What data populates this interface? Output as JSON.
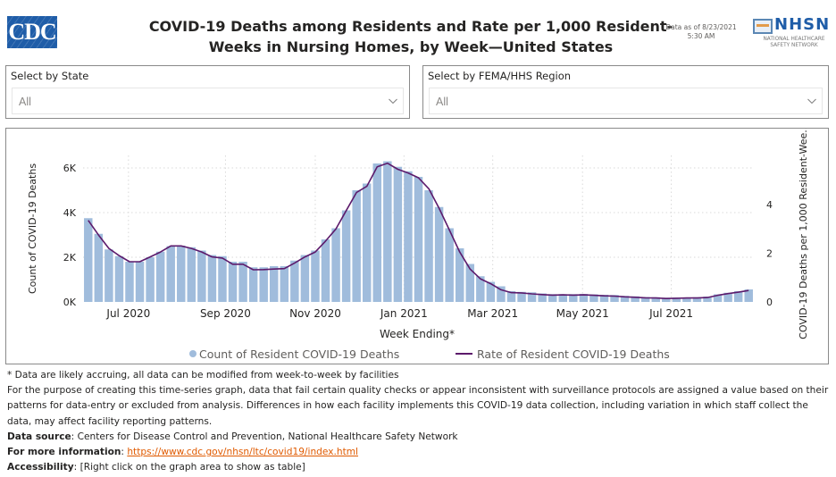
{
  "header": {
    "logo_text": "CDC",
    "title_line1": "COVID-19 Deaths among Residents and Rate per 1,000 Resident-",
    "title_line2": "Weeks in Nursing Homes, by Week—United States",
    "as_of_line1": "Data as of 8/23/2021",
    "as_of_line2": "5:30 AM",
    "nhsn_logo_text": "NHSN",
    "nhsn_sub_line1": "NATIONAL HEALTHCARE",
    "nhsn_sub_line2": "SAFETY NETWORK"
  },
  "filters": {
    "state": {
      "label": "Select by State",
      "value": "All"
    },
    "region": {
      "label": "Select by FEMA/HHS Region",
      "value": "All"
    }
  },
  "chart_data": {
    "type": "bar+line",
    "title": "",
    "xlabel": "Week Ending*",
    "ylabel": "Count of COVID-19 Deaths",
    "y2label": "COVID-19 Deaths per 1,000 Resident-Wee...",
    "ylim": [
      0,
      6500
    ],
    "y2lim": [
      0,
      5.9
    ],
    "yticks": [
      {
        "v": 0,
        "label": "0K"
      },
      {
        "v": 2000,
        "label": "2K"
      },
      {
        "v": 4000,
        "label": "4K"
      },
      {
        "v": 6000,
        "label": "6K"
      }
    ],
    "y2ticks": [
      {
        "v": 0,
        "label": "0"
      },
      {
        "v": 2,
        "label": "2"
      },
      {
        "v": 4,
        "label": "4"
      }
    ],
    "xticks": [
      {
        "index": 4.4,
        "label": "Jul 2020"
      },
      {
        "index": 13.8,
        "label": "Sep 2020"
      },
      {
        "index": 22.5,
        "label": "Nov 2020"
      },
      {
        "index": 31.1,
        "label": "Jan 2021"
      },
      {
        "index": 39.7,
        "label": "Mar 2021"
      },
      {
        "index": 48.4,
        "label": "May 2021"
      },
      {
        "index": 57.0,
        "label": "Jul 2021"
      }
    ],
    "grid": true,
    "legend_position": "bottom-center",
    "series": [
      {
        "name": "Count of Resident COVID-19 Deaths",
        "type": "bar",
        "color": "#a0bcdc",
        "values": [
          3750,
          3050,
          2350,
          2050,
          1800,
          1800,
          2000,
          2250,
          2500,
          2520,
          2450,
          2300,
          2100,
          2050,
          1800,
          1800,
          1550,
          1550,
          1600,
          1600,
          1850,
          2100,
          2300,
          2800,
          3300,
          4100,
          5000,
          5300,
          6200,
          6300,
          6050,
          5850,
          5600,
          5000,
          4250,
          3300,
          2400,
          1700,
          1150,
          900,
          700,
          480,
          450,
          430,
          380,
          350,
          350,
          350,
          360,
          340,
          320,
          310,
          270,
          250,
          220,
          210,
          190,
          200,
          200,
          210,
          240,
          340,
          410,
          480,
          560
        ]
      },
      {
        "name": "Rate of Resident COVID-19 Deaths",
        "type": "line",
        "color": "#5c1a6b",
        "values": [
          3.35,
          2.75,
          2.2,
          1.9,
          1.65,
          1.65,
          1.85,
          2.05,
          2.3,
          2.3,
          2.2,
          2.05,
          1.85,
          1.8,
          1.55,
          1.55,
          1.32,
          1.33,
          1.35,
          1.37,
          1.6,
          1.85,
          2.05,
          2.5,
          3.0,
          3.75,
          4.5,
          4.75,
          5.55,
          5.7,
          5.45,
          5.3,
          5.1,
          4.65,
          3.85,
          2.95,
          2.05,
          1.35,
          0.95,
          0.75,
          0.5,
          0.38,
          0.37,
          0.33,
          0.3,
          0.28,
          0.29,
          0.28,
          0.29,
          0.27,
          0.25,
          0.24,
          0.21,
          0.19,
          0.17,
          0.16,
          0.14,
          0.15,
          0.16,
          0.16,
          0.18,
          0.27,
          0.34,
          0.4,
          0.47
        ]
      }
    ]
  },
  "footnotes": {
    "note1": "* Data are likely accruing, all data can be modified from week-to-week by facilities",
    "note2": "For the purpose of creating this time-series graph, data that fail certain quality checks or appear inconsistent with surveillance protocols are assigned a value based on their patterns for data-entry or excluded from analysis. Differences in how each facility implements this COVID-19 data collection, including variation in which staff collect the data, may affect facility reporting patterns.",
    "source_label": "Data source",
    "source_text": ": Centers for Disease Control and Prevention, National Healthcare Safety Network",
    "more_label": "For more information",
    "more_sep": ": ",
    "more_link": "https://www.cdc.gov/nhsn/ltc/covid19/index.html",
    "access_label": "Accessibility",
    "access_text": ": [Right click on the graph area to show as table]"
  }
}
